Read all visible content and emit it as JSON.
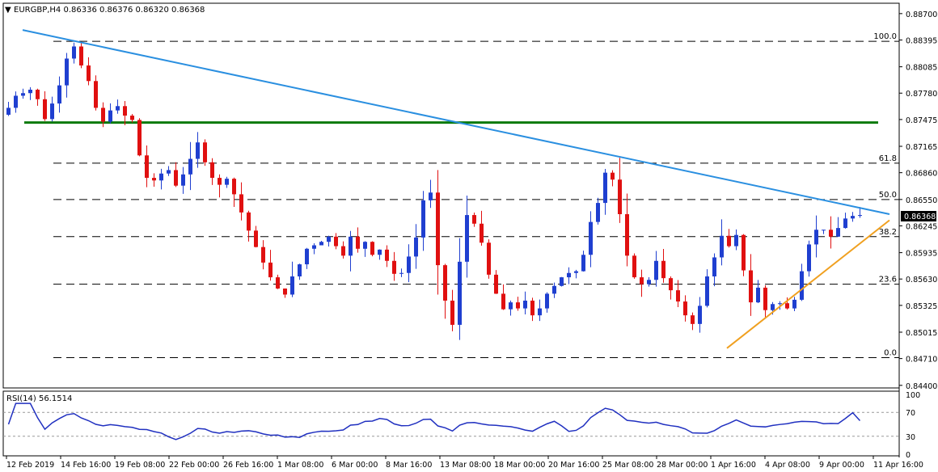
{
  "header": {
    "symbol_line": "EURGBP,H4  0.86336 0.86376 0.86320 0.86368",
    "rsi_label": "RSI(14) 56.1514"
  },
  "price_scale": {
    "ticks": [
      "0.88700",
      "0.88395",
      "0.88085",
      "0.87780",
      "0.87475",
      "0.87165",
      "0.86860",
      "0.86550",
      "0.86245",
      "0.85935",
      "0.85630",
      "0.85325",
      "0.85015",
      "0.84710",
      "0.84400"
    ],
    "current_price": "0.86368"
  },
  "rsi_scale": {
    "ticks": [
      "100",
      "70",
      "30",
      "0"
    ]
  },
  "time_axis": {
    "labels": [
      "12 Feb 2019",
      "14 Feb 16:00",
      "19 Feb 08:00",
      "22 Feb 00:00",
      "26 Feb 16:00",
      "1 Mar 08:00",
      "6 Mar 00:00",
      "8 Mar 16:00",
      "13 Mar 08:00",
      "18 Mar 00:00",
      "20 Mar 16:00",
      "25 Mar 08:00",
      "28 Mar 00:00",
      "1 Apr 16:00",
      "4 Apr 08:00",
      "9 Apr 00:00",
      "11 Apr 16:00"
    ]
  },
  "colors": {
    "bull": "#1f3fd0",
    "bear": "#e01010",
    "trendline": "#2a8fe0",
    "support_line": "#0a7a0a",
    "rising_trendline": "#f0a020",
    "rsi_line": "#2030c0"
  },
  "chart_data": {
    "type": "candlestick",
    "title": "EURGBP,H4",
    "ohlc_header": {
      "open": 0.86336,
      "high": 0.86376,
      "low": 0.8632,
      "close": 0.86368
    },
    "ylim": [
      0.8437,
      0.8882
    ],
    "fibonacci_levels": [
      {
        "label": "100.0",
        "price": 0.8838
      },
      {
        "label": "61.8",
        "price": 0.8697
      },
      {
        "label": "50.0",
        "price": 0.8655
      },
      {
        "label": "38.2",
        "price": 0.8612
      },
      {
        "label": "23.6",
        "price": 0.8557
      },
      {
        "label": "0.0",
        "price": 0.8472
      }
    ],
    "horizontal_support": 0.8744,
    "falling_trendline": [
      {
        "x": "12 Feb 2019",
        "y": 0.8851
      },
      {
        "x": "11 Apr 16:00",
        "y": 0.8638
      }
    ],
    "rising_trendline": [
      {
        "x": "1 Apr 16:00",
        "y": 0.8483
      },
      {
        "x": "11 Apr 16:00",
        "y": 0.8631
      }
    ],
    "closes": [
      0.8761,
      0.8775,
      0.8778,
      0.8782,
      0.8771,
      0.8748,
      0.8766,
      0.8787,
      0.8818,
      0.8832,
      0.881,
      0.8792,
      0.8761,
      0.8745,
      0.8758,
      0.8763,
      0.8752,
      0.8747,
      0.8706,
      0.868,
      0.8677,
      0.8685,
      0.8689,
      0.8671,
      0.8684,
      0.8702,
      0.8721,
      0.8698,
      0.868,
      0.8672,
      0.8679,
      0.8661,
      0.864,
      0.8619,
      0.86,
      0.8582,
      0.8565,
      0.8552,
      0.8545,
      0.8566,
      0.858,
      0.8598,
      0.8602,
      0.8606,
      0.8612,
      0.8601,
      0.859,
      0.8612,
      0.8598,
      0.8606,
      0.8591,
      0.8597,
      0.8584,
      0.8569,
      0.857,
      0.8589,
      0.8611,
      0.8654,
      0.8663,
      0.8579,
      0.8538,
      0.851,
      0.8583,
      0.8637,
      0.8627,
      0.8605,
      0.8568,
      0.8546,
      0.8528,
      0.8536,
      0.8529,
      0.8538,
      0.8521,
      0.8529,
      0.8546,
      0.8555,
      0.8565,
      0.857,
      0.8572,
      0.8591,
      0.8629,
      0.8651,
      0.8686,
      0.8678,
      0.8638,
      0.859,
      0.8565,
      0.8557,
      0.8562,
      0.8584,
      0.8564,
      0.855,
      0.8537,
      0.8521,
      0.8511,
      0.8532,
      0.8566,
      0.8588,
      0.8613,
      0.8601,
      0.8614,
      0.8573,
      0.8536,
      0.8553,
      0.8527,
      0.8534,
      0.8535,
      0.8529,
      0.8539,
      0.8572,
      0.8603,
      0.862,
      0.862,
      0.8612,
      0.8622,
      0.8633,
      0.8636,
      0.8637
    ],
    "rsi": {
      "name": "RSI(14)",
      "last": 56.1514,
      "levels": [
        70,
        30
      ],
      "ylim": [
        0,
        100
      ]
    }
  }
}
